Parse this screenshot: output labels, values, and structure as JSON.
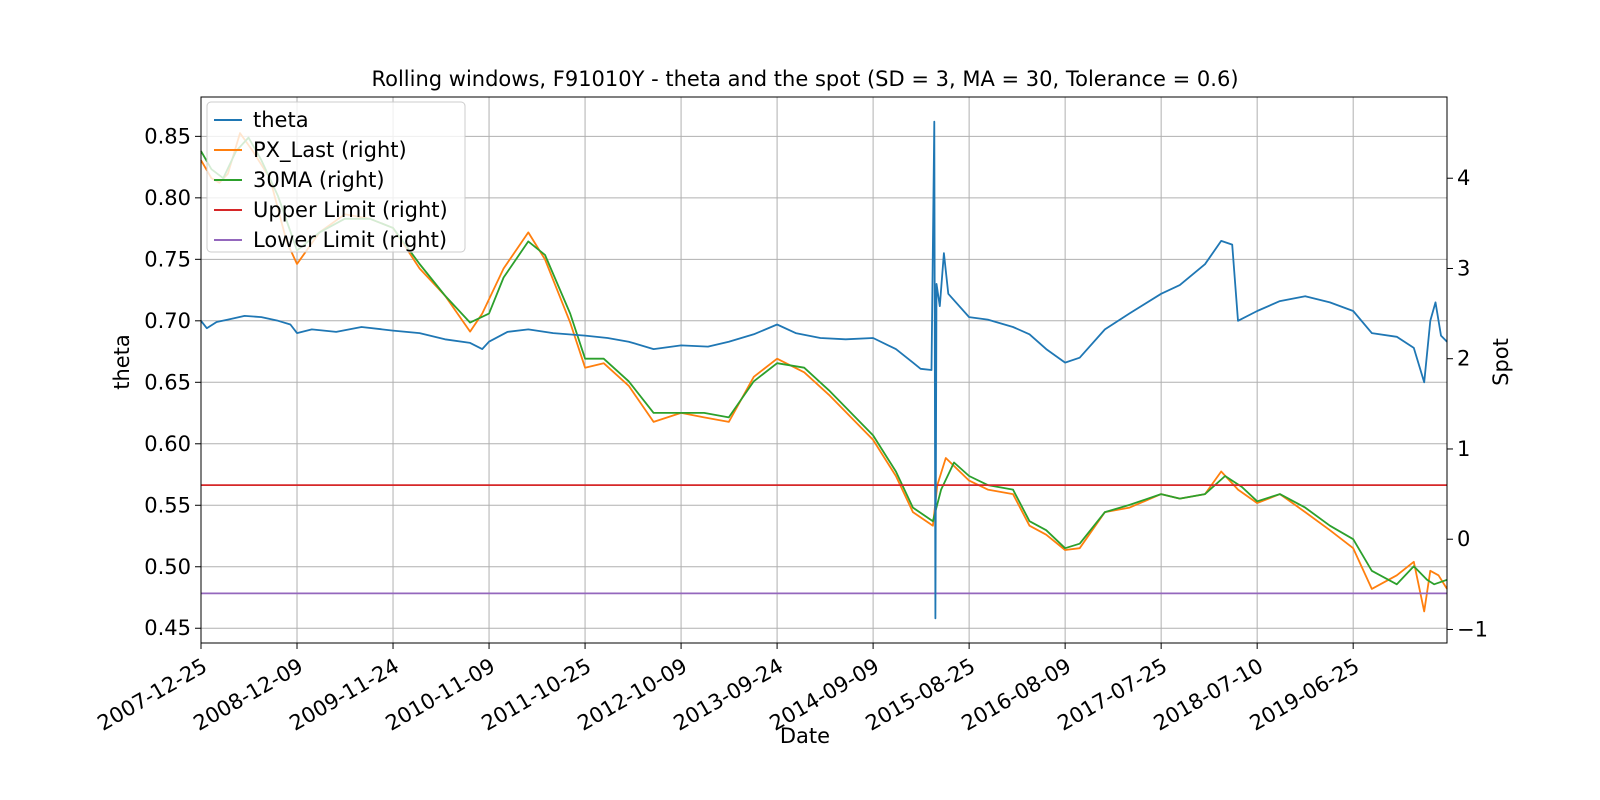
{
  "chart_data": {
    "type": "line",
    "title": "Rolling windows, F91010Y - theta and the spot (SD = 3, MA = 30, Tolerance  = 0.6)",
    "xlabel": "Date",
    "ylabel_left": "theta",
    "ylabel_right": "Spot",
    "x_start": "2007-12-25",
    "x_end": "2020-06-01",
    "x_ticks": [
      "2007-12-25",
      "2008-12-09",
      "2009-11-24",
      "2010-11-09",
      "2011-10-25",
      "2012-10-09",
      "2013-09-24",
      "2014-09-09",
      "2015-08-25",
      "2016-08-09",
      "2017-07-25",
      "2018-07-10",
      "2019-06-25"
    ],
    "ylim_left": [
      0.438,
      0.882
    ],
    "yticks_left": [
      "0.45",
      "0.50",
      "0.55",
      "0.60",
      "0.65",
      "0.70",
      "0.75",
      "0.80",
      "0.85"
    ],
    "ylim_right": [
      -1.15,
      4.9
    ],
    "yticks_right": [
      "−1",
      "0",
      "1",
      "2",
      "3",
      "4"
    ],
    "grid": true,
    "legend_position": "upper-left",
    "series": [
      {
        "name": "theta",
        "axis": "left",
        "color": "#1f77b4",
        "points": [
          [
            "2007-12-25",
            0.7
          ],
          [
            "2008-01-15",
            0.694
          ],
          [
            "2008-02-20",
            0.699
          ],
          [
            "2008-04-01",
            0.701
          ],
          [
            "2008-06-01",
            0.704
          ],
          [
            "2008-08-01",
            0.703
          ],
          [
            "2008-10-01",
            0.7
          ],
          [
            "2008-11-15",
            0.697
          ],
          [
            "2008-12-09",
            0.69
          ],
          [
            "2009-02-01",
            0.693
          ],
          [
            "2009-05-01",
            0.691
          ],
          [
            "2009-08-01",
            0.695
          ],
          [
            "2009-11-24",
            0.692
          ],
          [
            "2010-03-01",
            0.69
          ],
          [
            "2010-06-01",
            0.685
          ],
          [
            "2010-09-01",
            0.682
          ],
          [
            "2010-10-15",
            0.677
          ],
          [
            "2010-11-09",
            0.683
          ],
          [
            "2011-01-15",
            0.691
          ],
          [
            "2011-04-01",
            0.693
          ],
          [
            "2011-07-01",
            0.69
          ],
          [
            "2011-10-25",
            0.688
          ],
          [
            "2012-01-15",
            0.686
          ],
          [
            "2012-04-01",
            0.683
          ],
          [
            "2012-07-01",
            0.677
          ],
          [
            "2012-10-09",
            0.68
          ],
          [
            "2013-01-15",
            0.679
          ],
          [
            "2013-04-01",
            0.683
          ],
          [
            "2013-07-01",
            0.689
          ],
          [
            "2013-09-24",
            0.697
          ],
          [
            "2013-12-01",
            0.69
          ],
          [
            "2014-03-01",
            0.686
          ],
          [
            "2014-06-01",
            0.685
          ],
          [
            "2014-09-09",
            0.686
          ],
          [
            "2014-12-01",
            0.677
          ],
          [
            "2015-02-01",
            0.666
          ],
          [
            "2015-03-01",
            0.661
          ],
          [
            "2015-04-10",
            0.66
          ],
          [
            "2015-04-20",
            0.862
          ],
          [
            "2015-04-24",
            0.458
          ],
          [
            "2015-04-28",
            0.73
          ],
          [
            "2015-05-10",
            0.712
          ],
          [
            "2015-05-25",
            0.755
          ],
          [
            "2015-06-10",
            0.722
          ],
          [
            "2015-08-25",
            0.703
          ],
          [
            "2015-11-01",
            0.701
          ],
          [
            "2016-02-01",
            0.695
          ],
          [
            "2016-04-01",
            0.689
          ],
          [
            "2016-06-01",
            0.677
          ],
          [
            "2016-08-09",
            0.666
          ],
          [
            "2016-10-01",
            0.67
          ],
          [
            "2017-01-01",
            0.693
          ],
          [
            "2017-04-01",
            0.706
          ],
          [
            "2017-07-25",
            0.722
          ],
          [
            "2017-10-01",
            0.729
          ],
          [
            "2018-01-01",
            0.746
          ],
          [
            "2018-03-01",
            0.765
          ],
          [
            "2018-04-10",
            0.762
          ],
          [
            "2018-05-01",
            0.7
          ],
          [
            "2018-07-10",
            0.708
          ],
          [
            "2018-10-01",
            0.716
          ],
          [
            "2019-01-01",
            0.72
          ],
          [
            "2019-04-01",
            0.715
          ],
          [
            "2019-06-25",
            0.708
          ],
          [
            "2019-09-01",
            0.69
          ],
          [
            "2019-12-01",
            0.687
          ],
          [
            "2020-02-01",
            0.678
          ],
          [
            "2020-03-10",
            0.65
          ],
          [
            "2020-04-01",
            0.7
          ],
          [
            "2020-04-20",
            0.715
          ],
          [
            "2020-05-10",
            0.688
          ],
          [
            "2020-06-01",
            0.683
          ]
        ]
      },
      {
        "name": "PX_Last (right)",
        "axis": "right",
        "color": "#ff7f0e",
        "points": [
          [
            "2007-12-25",
            4.2
          ],
          [
            "2008-02-01",
            4.0
          ],
          [
            "2008-03-01",
            3.95
          ],
          [
            "2008-04-01",
            4.05
          ],
          [
            "2008-05-15",
            4.5
          ],
          [
            "2008-07-01",
            4.3
          ],
          [
            "2008-09-01",
            4.0
          ],
          [
            "2008-11-01",
            3.3
          ],
          [
            "2008-12-09",
            3.05
          ],
          [
            "2009-03-01",
            3.4
          ],
          [
            "2009-06-01",
            3.6
          ],
          [
            "2009-09-01",
            3.55
          ],
          [
            "2009-11-24",
            3.45
          ],
          [
            "2010-03-01",
            3.0
          ],
          [
            "2010-06-01",
            2.7
          ],
          [
            "2010-09-01",
            2.3
          ],
          [
            "2010-10-15",
            2.5
          ],
          [
            "2011-01-01",
            3.0
          ],
          [
            "2011-04-01",
            3.4
          ],
          [
            "2011-06-01",
            3.1
          ],
          [
            "2011-09-01",
            2.4
          ],
          [
            "2011-10-25",
            1.9
          ],
          [
            "2012-01-01",
            1.95
          ],
          [
            "2012-04-01",
            1.7
          ],
          [
            "2012-07-01",
            1.3
          ],
          [
            "2012-10-09",
            1.4
          ],
          [
            "2013-01-01",
            1.35
          ],
          [
            "2013-04-01",
            1.3
          ],
          [
            "2013-07-01",
            1.8
          ],
          [
            "2013-09-24",
            2.0
          ],
          [
            "2014-01-01",
            1.85
          ],
          [
            "2014-04-01",
            1.6
          ],
          [
            "2014-09-09",
            1.1
          ],
          [
            "2014-12-01",
            0.7
          ],
          [
            "2015-02-01",
            0.3
          ],
          [
            "2015-04-15",
            0.15
          ],
          [
            "2015-05-01",
            0.6
          ],
          [
            "2015-06-01",
            0.9
          ],
          [
            "2015-08-25",
            0.65
          ],
          [
            "2015-11-01",
            0.55
          ],
          [
            "2016-02-01",
            0.5
          ],
          [
            "2016-04-01",
            0.15
          ],
          [
            "2016-06-01",
            0.05
          ],
          [
            "2016-08-09",
            -0.12
          ],
          [
            "2016-10-01",
            -0.1
          ],
          [
            "2017-01-01",
            0.3
          ],
          [
            "2017-04-01",
            0.35
          ],
          [
            "2017-07-25",
            0.5
          ],
          [
            "2017-10-01",
            0.45
          ],
          [
            "2018-01-01",
            0.5
          ],
          [
            "2018-03-01",
            0.75
          ],
          [
            "2018-05-01",
            0.55
          ],
          [
            "2018-07-10",
            0.4
          ],
          [
            "2018-10-01",
            0.5
          ],
          [
            "2019-01-01",
            0.3
          ],
          [
            "2019-04-01",
            0.1
          ],
          [
            "2019-06-25",
            -0.1
          ],
          [
            "2019-09-01",
            -0.55
          ],
          [
            "2019-12-01",
            -0.4
          ],
          [
            "2020-02-01",
            -0.25
          ],
          [
            "2020-03-10",
            -0.8
          ],
          [
            "2020-04-01",
            -0.35
          ],
          [
            "2020-05-01",
            -0.4
          ],
          [
            "2020-06-01",
            -0.55
          ]
        ]
      },
      {
        "name": "30MA (right)",
        "axis": "right",
        "color": "#2ca02c",
        "points": [
          [
            "2007-12-25",
            4.3
          ],
          [
            "2008-02-01",
            4.1
          ],
          [
            "2008-03-15",
            4.0
          ],
          [
            "2008-05-01",
            4.3
          ],
          [
            "2008-06-15",
            4.45
          ],
          [
            "2008-08-01",
            4.2
          ],
          [
            "2008-10-01",
            3.8
          ],
          [
            "2008-12-09",
            3.2
          ],
          [
            "2009-03-01",
            3.4
          ],
          [
            "2009-06-01",
            3.55
          ],
          [
            "2009-09-01",
            3.55
          ],
          [
            "2009-11-24",
            3.45
          ],
          [
            "2010-03-01",
            3.05
          ],
          [
            "2010-06-01",
            2.7
          ],
          [
            "2010-09-01",
            2.4
          ],
          [
            "2010-11-09",
            2.5
          ],
          [
            "2011-01-01",
            2.9
          ],
          [
            "2011-04-01",
            3.3
          ],
          [
            "2011-06-01",
            3.15
          ],
          [
            "2011-09-01",
            2.5
          ],
          [
            "2011-10-25",
            2.0
          ],
          [
            "2012-01-01",
            2.0
          ],
          [
            "2012-04-01",
            1.75
          ],
          [
            "2012-07-01",
            1.4
          ],
          [
            "2012-10-09",
            1.4
          ],
          [
            "2013-01-01",
            1.4
          ],
          [
            "2013-04-01",
            1.35
          ],
          [
            "2013-07-01",
            1.75
          ],
          [
            "2013-09-24",
            1.95
          ],
          [
            "2014-01-01",
            1.9
          ],
          [
            "2014-04-01",
            1.65
          ],
          [
            "2014-09-09",
            1.15
          ],
          [
            "2014-12-01",
            0.75
          ],
          [
            "2015-02-01",
            0.35
          ],
          [
            "2015-04-15",
            0.2
          ],
          [
            "2015-05-15",
            0.55
          ],
          [
            "2015-07-01",
            0.85
          ],
          [
            "2015-08-25",
            0.7
          ],
          [
            "2015-11-01",
            0.6
          ],
          [
            "2016-02-01",
            0.55
          ],
          [
            "2016-04-01",
            0.2
          ],
          [
            "2016-06-01",
            0.1
          ],
          [
            "2016-08-09",
            -0.1
          ],
          [
            "2016-10-01",
            -0.05
          ],
          [
            "2017-01-01",
            0.3
          ],
          [
            "2017-04-01",
            0.38
          ],
          [
            "2017-07-25",
            0.5
          ],
          [
            "2017-10-01",
            0.45
          ],
          [
            "2018-01-01",
            0.5
          ],
          [
            "2018-03-15",
            0.7
          ],
          [
            "2018-05-15",
            0.58
          ],
          [
            "2018-07-10",
            0.42
          ],
          [
            "2018-10-01",
            0.5
          ],
          [
            "2019-01-01",
            0.35
          ],
          [
            "2019-04-01",
            0.15
          ],
          [
            "2019-06-25",
            0.0
          ],
          [
            "2019-09-01",
            -0.35
          ],
          [
            "2019-12-01",
            -0.5
          ],
          [
            "2020-02-01",
            -0.3
          ],
          [
            "2020-03-20",
            -0.45
          ],
          [
            "2020-04-15",
            -0.5
          ],
          [
            "2020-06-01",
            -0.45
          ]
        ]
      },
      {
        "name": "Upper Limit (right)",
        "axis": "right",
        "color": "#d62728",
        "points": [
          [
            "2007-12-25",
            0.6
          ],
          [
            "2020-06-01",
            0.6
          ]
        ]
      },
      {
        "name": "Lower Limit (right)",
        "axis": "right",
        "color": "#9467bd",
        "points": [
          [
            "2007-12-25",
            -0.6
          ],
          [
            "2020-06-01",
            -0.6
          ]
        ]
      }
    ]
  }
}
